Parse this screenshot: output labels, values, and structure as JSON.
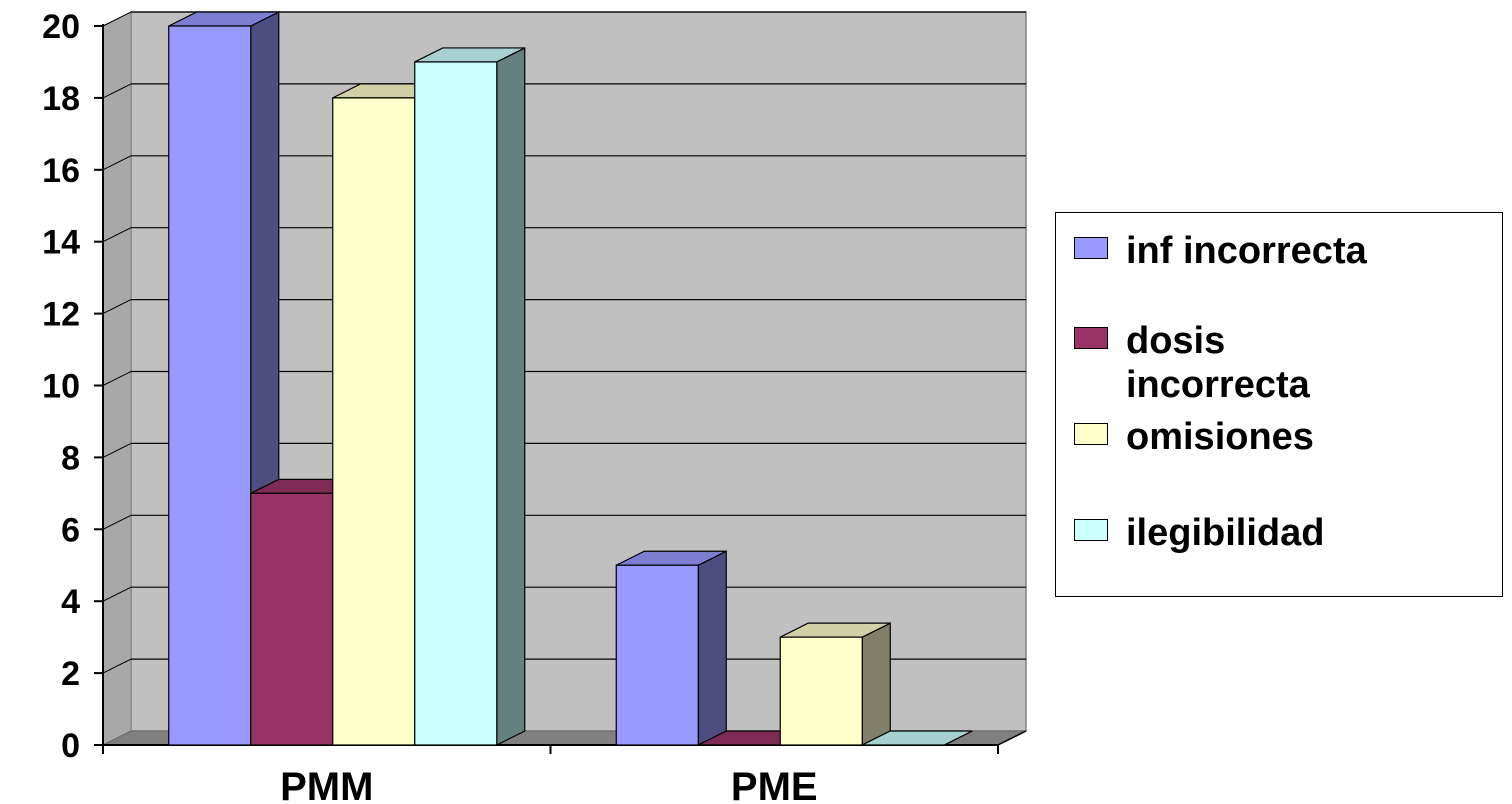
{
  "chart_data": {
    "type": "bar",
    "style": "3d-clustered-column",
    "categories": [
      "PMM",
      "PME"
    ],
    "series": [
      {
        "name": "inf incorrecta",
        "values": [
          20,
          5
        ],
        "color": "#9999FF",
        "side_color": "#4D4D80"
      },
      {
        "name": "dosis incorrecta",
        "values": [
          7,
          0
        ],
        "color": "#993366",
        "side_color": "#4D1A33"
      },
      {
        "name": "omisiones",
        "values": [
          18,
          3
        ],
        "color": "#FFFFCC",
        "side_color": "#808066"
      },
      {
        "name": "ilegibilidad",
        "values": [
          19,
          0
        ],
        "color": "#CCFFFF",
        "side_color": "#668080"
      }
    ],
    "y_ticks": [
      "0",
      "2",
      "4",
      "6",
      "8",
      "10",
      "12",
      "14",
      "16",
      "18",
      "20"
    ],
    "ylim": [
      0,
      20
    ],
    "grid": true,
    "plot_background": "#C0C0C0",
    "legend_position": "right",
    "title": "",
    "xlabel": "",
    "ylabel": ""
  }
}
